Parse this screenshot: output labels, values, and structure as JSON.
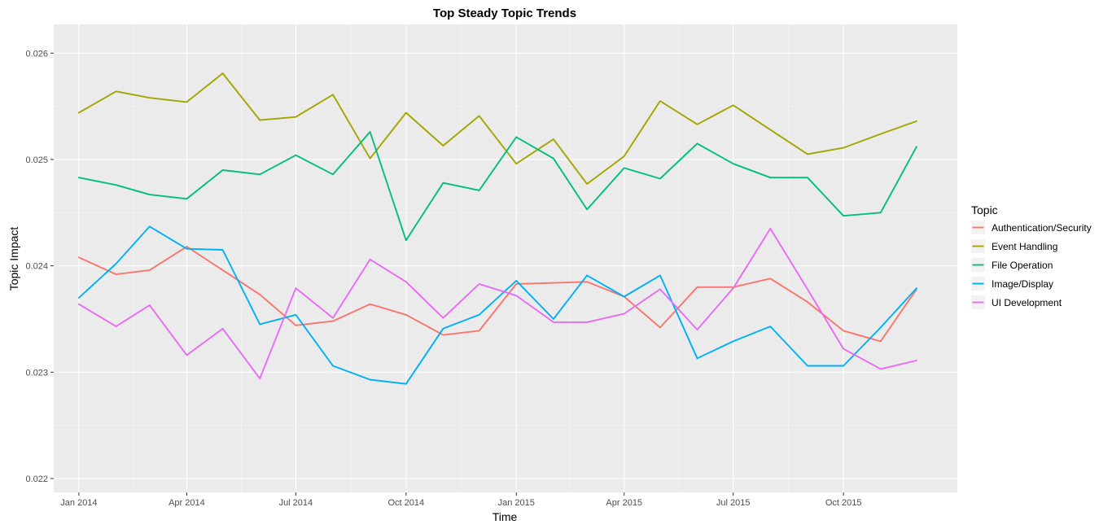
{
  "chart_data": {
    "type": "line",
    "title": "Top Steady Topic Trends",
    "xlabel": "Time",
    "ylabel": "Topic Impact",
    "x": [
      "2014-01",
      "2014-02",
      "2014-03",
      "2014-04",
      "2014-05",
      "2014-06",
      "2014-07",
      "2014-08",
      "2014-09",
      "2014-10",
      "2014-11",
      "2014-12",
      "2015-01",
      "2015-02",
      "2015-03",
      "2015-04",
      "2015-05",
      "2015-06",
      "2015-07",
      "2015-08",
      "2015-09",
      "2015-10",
      "2015-11",
      "2015-12"
    ],
    "x_ticks": [
      {
        "x": "2014-01",
        "label": "Jan 2014"
      },
      {
        "x": "2014-04",
        "label": "Apr 2014"
      },
      {
        "x": "2014-07",
        "label": "Jul 2014"
      },
      {
        "x": "2014-10",
        "label": "Oct 2014"
      },
      {
        "x": "2015-01",
        "label": "Jan 2015"
      },
      {
        "x": "2015-04",
        "label": "Apr 2015"
      },
      {
        "x": "2015-07",
        "label": "Jul 2015"
      },
      {
        "x": "2015-10",
        "label": "Oct 2015"
      }
    ],
    "y_ticks": [
      0.022,
      0.023,
      0.024,
      0.025,
      0.026
    ],
    "y_tick_labels": [
      "0.022",
      "0.023",
      "0.024",
      "0.025",
      "0.026"
    ],
    "ylim": [
      0.02187,
      0.02627
    ],
    "xlim": [
      "2013-12-11",
      "2016-01-04"
    ],
    "grid": true,
    "panel_background": "#EBEBEB",
    "legend": {
      "title": "Topic",
      "placement": "right"
    },
    "series": [
      {
        "name": "Authentication/Security",
        "color": "#F8766D",
        "values": [
          0.02408,
          0.02392,
          0.02396,
          0.02418,
          0.02396,
          0.02373,
          0.02344,
          0.02348,
          0.02364,
          0.02354,
          0.02335,
          0.02339,
          0.02383,
          0.02384,
          0.02385,
          0.02371,
          0.02342,
          0.0238,
          0.0238,
          0.02388,
          0.02366,
          0.02339,
          0.02329,
          0.02378
        ]
      },
      {
        "name": "Event Handling",
        "color": "#A3A500",
        "values": [
          0.02544,
          0.02564,
          0.02558,
          0.02554,
          0.02581,
          0.02537,
          0.0254,
          0.02561,
          0.02501,
          0.02544,
          0.02513,
          0.02541,
          0.02496,
          0.02519,
          0.02477,
          0.02503,
          0.02555,
          0.02533,
          0.02551,
          0.02528,
          0.02505,
          0.02511,
          0.02524,
          0.02536
        ]
      },
      {
        "name": "File Operation",
        "color": "#00BF7D",
        "values": [
          0.02483,
          0.02476,
          0.02467,
          0.02463,
          0.0249,
          0.02486,
          0.02504,
          0.02486,
          0.02526,
          0.02424,
          0.02478,
          0.02471,
          0.02521,
          0.02501,
          0.02453,
          0.02492,
          0.02482,
          0.02515,
          0.02496,
          0.02483,
          0.02483,
          0.02447,
          0.0245,
          0.02512
        ]
      },
      {
        "name": "Image/Display",
        "color": "#00B0F6",
        "values": [
          0.0237,
          0.02402,
          0.02437,
          0.02416,
          0.02415,
          0.02345,
          0.02354,
          0.02306,
          0.02293,
          0.02289,
          0.02341,
          0.02354,
          0.02386,
          0.0235,
          0.02391,
          0.02371,
          0.02391,
          0.02313,
          0.02329,
          0.02343,
          0.02306,
          0.02306,
          0.02342,
          0.02379
        ]
      },
      {
        "name": "UI Development",
        "color": "#E76BF3",
        "values": [
          0.02364,
          0.02343,
          0.02363,
          0.02316,
          0.02341,
          0.02294,
          0.02379,
          0.02351,
          0.02406,
          0.02385,
          0.02351,
          0.02383,
          0.02372,
          0.02347,
          0.02347,
          0.02355,
          0.02378,
          0.0234,
          0.02379,
          0.02435,
          0.02378,
          0.02322,
          0.02303,
          0.02311
        ]
      }
    ]
  }
}
